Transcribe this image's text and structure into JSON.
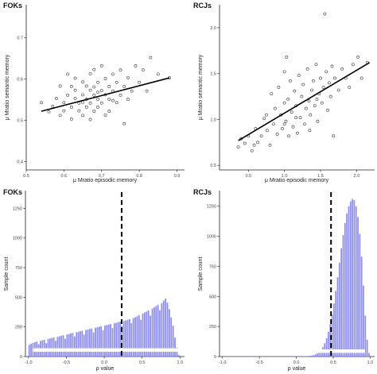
{
  "chart_data": [
    {
      "type": "scatter",
      "title": "FOKs",
      "xlabel": "μ Mratio episodic memory",
      "ylabel": "μ Mratio semantic memory",
      "xlim": [
        0.5,
        0.92
      ],
      "ylim": [
        0.38,
        0.78
      ],
      "xticks": [
        0.5,
        0.6,
        0.7,
        0.8,
        0.9
      ],
      "xtick_labels": [
        "0.5",
        "0.6",
        "0.7",
        "0.8",
        "0.9"
      ],
      "yticks": [
        0.4,
        0.5,
        0.6,
        0.7
      ],
      "ytick_labels": [
        "0.4",
        "0.5",
        "0.6",
        "0.7"
      ],
      "grid": false,
      "points": [
        [
          0.54,
          0.543
        ],
        [
          0.56,
          0.521
        ],
        [
          0.57,
          0.534
        ],
        [
          0.58,
          0.553
        ],
        [
          0.59,
          0.583
        ],
        [
          0.59,
          0.512
        ],
        [
          0.6,
          0.543
        ],
        [
          0.6,
          0.523
        ],
        [
          0.61,
          0.612
        ],
        [
          0.61,
          0.561
        ],
        [
          0.62,
          0.532
        ],
        [
          0.62,
          0.503
        ],
        [
          0.63,
          0.602
        ],
        [
          0.63,
          0.573
        ],
        [
          0.63,
          0.553
        ],
        [
          0.64,
          0.542
        ],
        [
          0.64,
          0.523
        ],
        [
          0.65,
          0.593
        ],
        [
          0.65,
          0.562
        ],
        [
          0.65,
          0.512
        ],
        [
          0.66,
          0.583
        ],
        [
          0.66,
          0.551
        ],
        [
          0.66,
          0.532
        ],
        [
          0.67,
          0.613
        ],
        [
          0.67,
          0.573
        ],
        [
          0.67,
          0.542
        ],
        [
          0.67,
          0.502
        ],
        [
          0.68,
          0.623
        ],
        [
          0.68,
          0.581
        ],
        [
          0.68,
          0.561
        ],
        [
          0.68,
          0.522
        ],
        [
          0.69,
          0.592
        ],
        [
          0.69,
          0.551
        ],
        [
          0.69,
          0.532
        ],
        [
          0.7,
          0.632
        ],
        [
          0.7,
          0.572
        ],
        [
          0.7,
          0.542
        ],
        [
          0.71,
          0.601
        ],
        [
          0.71,
          0.562
        ],
        [
          0.71,
          0.513
        ],
        [
          0.72,
          0.582
        ],
        [
          0.72,
          0.551
        ],
        [
          0.73,
          0.612
        ],
        [
          0.73,
          0.571
        ],
        [
          0.74,
          0.592
        ],
        [
          0.74,
          0.543
        ],
        [
          0.75,
          0.622
        ],
        [
          0.75,
          0.561
        ],
        [
          0.76,
          0.582
        ],
        [
          0.77,
          0.551
        ],
        [
          0.77,
          0.603
        ],
        [
          0.78,
          0.571
        ],
        [
          0.79,
          0.632
        ],
        [
          0.8,
          0.592
        ],
        [
          0.81,
          0.622
        ],
        [
          0.82,
          0.571
        ],
        [
          0.83,
          0.652
        ],
        [
          0.85,
          0.612
        ],
        [
          0.76,
          0.492
        ],
        [
          0.88,
          0.603
        ],
        [
          0.62,
          0.582
        ],
        [
          0.72,
          0.522
        ],
        [
          0.65,
          0.544
        ],
        [
          0.69,
          0.568
        ],
        [
          0.73,
          0.548
        ]
      ],
      "fit_line": [
        [
          0.54,
          0.522
        ],
        [
          0.88,
          0.603
        ]
      ]
    },
    {
      "type": "scatter",
      "title": "RCJs",
      "xlabel": "μ Mratio episodic memory",
      "ylabel": "μ Mratio semantic memory",
      "xlim": [
        0.1,
        2.25
      ],
      "ylim": [
        0.45,
        2.25
      ],
      "xticks": [
        0.5,
        1.0,
        1.5,
        2.0
      ],
      "xtick_labels": [
        "0.5",
        "1.0",
        "1.5",
        "2.0"
      ],
      "yticks": [
        0.5,
        1.0,
        1.5,
        2.0
      ],
      "ytick_labels": [
        "0.5",
        "1.0",
        "1.5",
        "2.0"
      ],
      "grid": false,
      "points": [
        [
          0.36,
          0.7
        ],
        [
          0.4,
          0.79
        ],
        [
          0.45,
          0.74
        ],
        [
          0.5,
          0.82
        ],
        [
          0.55,
          0.66
        ],
        [
          0.6,
          0.9
        ],
        [
          0.63,
          0.75
        ],
        [
          0.68,
          0.82
        ],
        [
          0.72,
          1.01
        ],
        [
          0.76,
          0.88
        ],
        [
          0.8,
          0.72
        ],
        [
          0.82,
          1.28
        ],
        [
          0.85,
          0.95
        ],
        [
          0.87,
          1.12
        ],
        [
          0.9,
          0.84
        ],
        [
          0.92,
          1.35
        ],
        [
          0.95,
          1.05
        ],
        [
          0.97,
          0.9
        ],
        [
          1.0,
          1.18
        ],
        [
          1.0,
          1.52
        ],
        [
          1.02,
          0.98
        ],
        [
          1.03,
          1.68
        ],
        [
          1.05,
          1.22
        ],
        [
          1.06,
          0.82
        ],
        [
          1.08,
          1.42
        ],
        [
          1.1,
          1.08
        ],
        [
          1.12,
          0.92
        ],
        [
          1.14,
          1.31
        ],
        [
          1.16,
          1.15
        ],
        [
          1.18,
          0.85
        ],
        [
          1.2,
          1.48
        ],
        [
          1.22,
          1.02
        ],
        [
          1.24,
          1.25
        ],
        [
          1.26,
          1.38
        ],
        [
          1.28,
          0.95
        ],
        [
          1.3,
          1.12
        ],
        [
          1.32,
          1.55
        ],
        [
          1.34,
          1.2
        ],
        [
          1.36,
          1.05
        ],
        [
          1.38,
          1.32
        ],
        [
          1.4,
          1.42
        ],
        [
          1.42,
          1.15
        ],
        [
          1.44,
          1.6
        ],
        [
          1.46,
          0.98
        ],
        [
          1.48,
          1.28
        ],
        [
          1.5,
          1.45
        ],
        [
          1.52,
          1.18
        ],
        [
          1.54,
          1.35
        ],
        [
          1.56,
          2.15
        ],
        [
          1.58,
          1.52
        ],
        [
          1.6,
          1.1
        ],
        [
          1.62,
          1.4
        ],
        [
          1.64,
          1.25
        ],
        [
          1.66,
          1.58
        ],
        [
          1.68,
          0.82
        ],
        [
          1.7,
          1.45
        ],
        [
          1.75,
          1.32
        ],
        [
          1.8,
          1.55
        ],
        [
          1.85,
          1.45
        ],
        [
          1.9,
          1.35
        ],
        [
          1.95,
          1.6
        ],
        [
          2.02,
          1.68
        ],
        [
          2.07,
          1.45
        ],
        [
          2.15,
          1.62
        ],
        [
          0.58,
          0.72
        ],
        [
          1.0,
          0.95
        ],
        [
          1.35,
          0.88
        ],
        [
          0.75,
          1.05
        ],
        [
          1.16,
          1.02
        ],
        [
          1.45,
          1.22
        ]
      ],
      "fit_line": [
        [
          0.36,
          0.77
        ],
        [
          2.18,
          1.62
        ]
      ]
    },
    {
      "type": "bar",
      "title": "FOKs",
      "xlabel": "ρ value",
      "ylabel": "Sample count",
      "xlim": [
        -1.04,
        1.06
      ],
      "ylim": [
        0,
        1400
      ],
      "xticks": [
        -1.0,
        -0.5,
        0.0,
        0.5,
        1.0
      ],
      "xtick_labels": [
        "-1.0",
        "-0.5",
        "0.0",
        "0.5",
        "1.0"
      ],
      "yticks": [
        0,
        250,
        500,
        750,
        1000,
        1250
      ],
      "ytick_labels": [
        "0",
        "250",
        "500",
        "750",
        "1000",
        "1250"
      ],
      "bin_start": -1.0,
      "bin_width": 0.025,
      "bars_color": "#8c8cf2",
      "values": [
        98,
        108,
        115,
        121,
        126,
        104,
        132,
        138,
        142,
        112,
        148,
        152,
        157,
        161,
        133,
        166,
        171,
        175,
        180,
        150,
        186,
        190,
        195,
        199,
        168,
        205,
        209,
        214,
        218,
        185,
        224,
        228,
        233,
        237,
        203,
        243,
        247,
        252,
        256,
        222,
        262,
        266,
        270,
        274,
        240,
        280,
        285,
        290,
        294,
        260,
        300,
        305,
        310,
        315,
        280,
        325,
        332,
        340,
        350,
        310,
        362,
        372,
        380,
        390,
        345,
        405,
        415,
        425,
        438,
        390,
        450,
        472,
        490,
        455,
        400,
        330,
        260,
        160,
        75,
        15
      ],
      "observed_line": 0.23,
      "interval_bar": [
        -0.94,
        0.97
      ],
      "interval_y": 55
    },
    {
      "type": "bar",
      "title": "RCJs",
      "xlabel": "ρ value",
      "ylabel": "Sample count",
      "xlim": [
        -1.04,
        1.06
      ],
      "ylim": [
        0,
        1380
      ],
      "xticks": [
        -1.0,
        -0.5,
        0.0,
        0.5,
        1.0
      ],
      "xtick_labels": [
        "-1.0",
        "-0.5",
        "0.0",
        "0.5",
        "1.0"
      ],
      "yticks": [
        0,
        250,
        500,
        750,
        1000,
        1250
      ],
      "ytick_labels": [
        "0",
        "250",
        "500",
        "750",
        "1000",
        "1250"
      ],
      "bin_start": -1.0,
      "bin_width": 0.025,
      "bars_color": "#8c8cf2",
      "values": [
        1,
        1,
        1,
        1,
        1,
        1,
        1,
        1,
        1,
        1,
        1,
        1,
        1,
        1,
        1,
        1,
        1,
        1,
        1,
        1,
        1,
        1,
        1,
        1,
        1,
        1,
        1,
        1,
        1,
        1,
        1,
        1,
        1,
        1,
        1,
        1,
        1,
        1,
        1,
        1,
        1,
        1,
        1,
        2,
        2,
        3,
        4,
        6,
        8,
        12,
        18,
        26,
        38,
        55,
        78,
        110,
        152,
        205,
        270,
        348,
        440,
        545,
        660,
        780,
        900,
        1010,
        1110,
        1190,
        1250,
        1290,
        1310,
        1300,
        1250,
        1160,
        1020,
        830,
        590,
        340,
        140,
        30
      ],
      "observed_line": 0.47,
      "interval_bar": [
        0.3,
        0.93
      ],
      "interval_y": 45
    }
  ]
}
